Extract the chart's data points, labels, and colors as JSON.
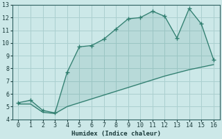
{
  "xlabel": "Humidex (Indice chaleur)",
  "x_upper": [
    0,
    1,
    2,
    3,
    4,
    5,
    6,
    7,
    8,
    9,
    10,
    11,
    12,
    13,
    14,
    15,
    16
  ],
  "y_upper": [
    5.3,
    5.5,
    4.7,
    4.5,
    7.7,
    9.7,
    9.8,
    10.3,
    11.1,
    11.9,
    12.0,
    12.5,
    12.1,
    10.4,
    12.7,
    11.5,
    8.7
  ],
  "x_lower": [
    0,
    1,
    2,
    3,
    4,
    5,
    6,
    7,
    8,
    9,
    10,
    11,
    12,
    13,
    14,
    15,
    16
  ],
  "y_lower": [
    5.2,
    5.2,
    4.55,
    4.45,
    5.0,
    5.3,
    5.6,
    5.9,
    6.2,
    6.5,
    6.8,
    7.1,
    7.4,
    7.65,
    7.9,
    8.1,
    8.3
  ],
  "line_color": "#2e7d6e",
  "bg_color": "#cce8e8",
  "grid_color": "#aacfcf",
  "xlim": [
    -0.5,
    16.5
  ],
  "ylim": [
    4,
    13
  ],
  "xticks": [
    0,
    1,
    2,
    3,
    4,
    5,
    6,
    7,
    8,
    9,
    10,
    11,
    12,
    13,
    14,
    15,
    16
  ],
  "yticks": [
    4,
    5,
    6,
    7,
    8,
    9,
    10,
    11,
    12,
    13
  ]
}
